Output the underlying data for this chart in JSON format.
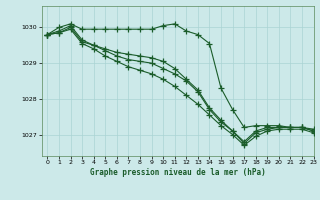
{
  "title": "Graphe pression niveau de la mer (hPa)",
  "bg_color": "#cce9e9",
  "grid_color": "#aad4d4",
  "line_color": "#1a5c2a",
  "xlim": [
    -0.5,
    23
  ],
  "ylim": [
    1026.4,
    1030.6
  ],
  "yticks": [
    1027,
    1028,
    1029,
    1030
  ],
  "xticks": [
    0,
    1,
    2,
    3,
    4,
    5,
    6,
    7,
    8,
    9,
    10,
    11,
    12,
    13,
    14,
    15,
    16,
    17,
    18,
    19,
    20,
    21,
    22,
    23
  ],
  "series": [
    [
      1029.8,
      1030.0,
      1030.1,
      1029.95,
      1029.95,
      1029.95,
      1029.95,
      1029.95,
      1029.95,
      1029.95,
      1030.05,
      1030.1,
      1029.9,
      1029.8,
      1029.55,
      1028.3,
      1027.7,
      1027.2,
      1027.25,
      1027.25,
      1027.25,
      1027.2,
      1027.2,
      1027.15
    ],
    [
      1029.8,
      1029.85,
      1030.0,
      1029.6,
      1029.5,
      1029.35,
      1029.2,
      1029.1,
      1029.05,
      1029.0,
      1028.85,
      1028.7,
      1028.5,
      1028.2,
      1027.7,
      1027.35,
      1027.1,
      1026.75,
      1027.05,
      1027.15,
      1027.2,
      1027.2,
      1027.2,
      1027.1
    ],
    [
      1029.8,
      1029.85,
      1029.95,
      1029.55,
      1029.4,
      1029.2,
      1029.05,
      1028.9,
      1028.8,
      1028.7,
      1028.55,
      1028.35,
      1028.1,
      1027.85,
      1027.55,
      1027.25,
      1027.0,
      1026.7,
      1026.95,
      1027.1,
      1027.15,
      1027.15,
      1027.15,
      1027.05
    ],
    [
      1029.8,
      1029.9,
      1030.05,
      1029.65,
      1029.5,
      1029.4,
      1029.3,
      1029.25,
      1029.2,
      1029.15,
      1029.05,
      1028.85,
      1028.55,
      1028.25,
      1027.75,
      1027.4,
      1027.1,
      1026.8,
      1027.1,
      1027.2,
      1027.2,
      1027.2,
      1027.2,
      1027.1
    ]
  ]
}
